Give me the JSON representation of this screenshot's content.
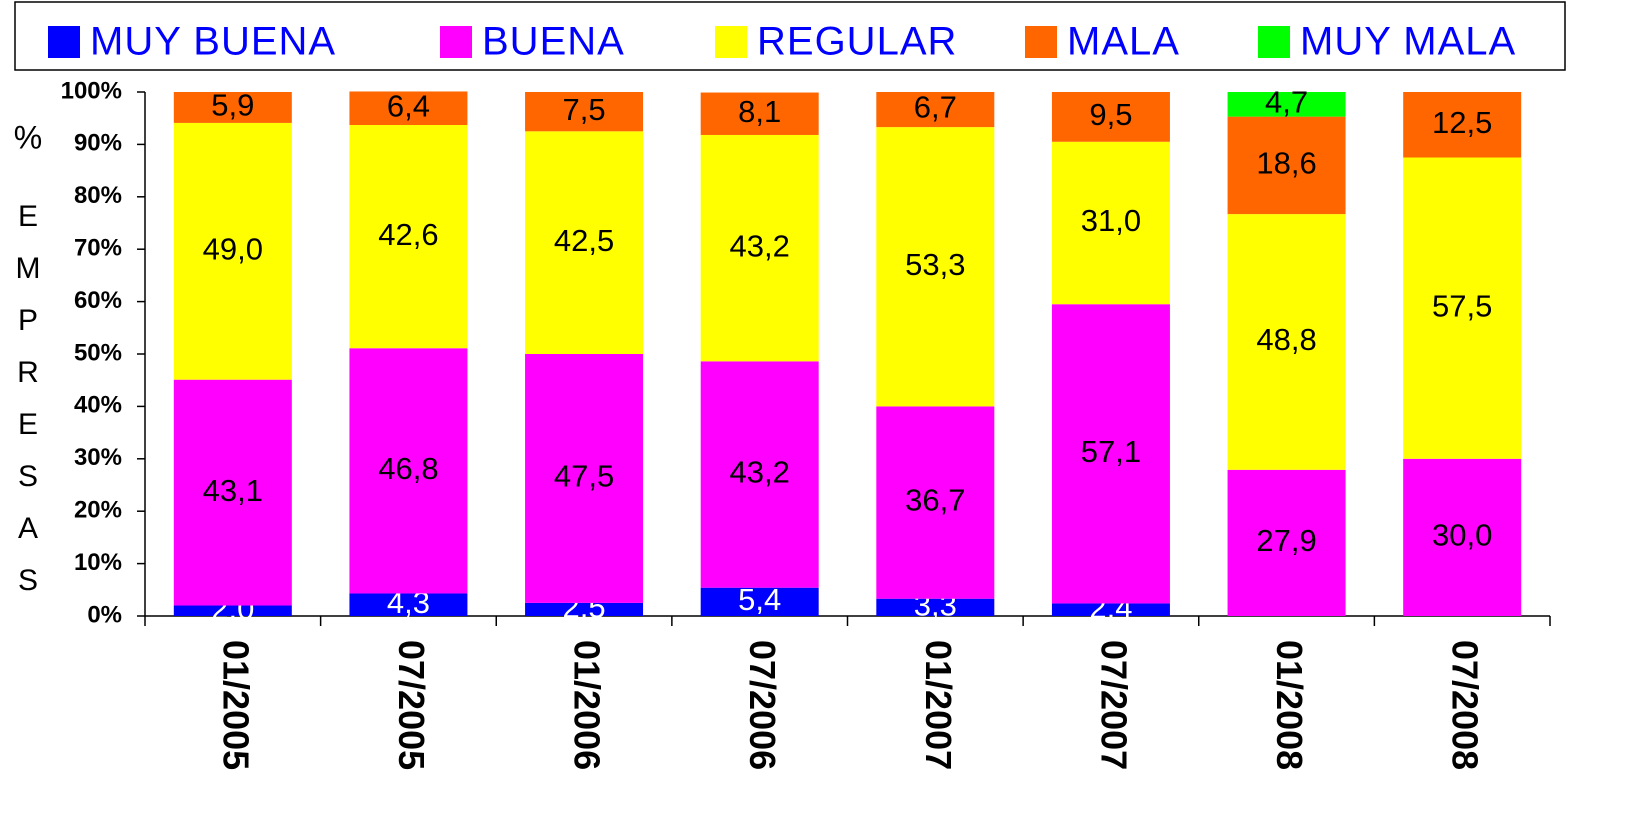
{
  "chart_data": {
    "type": "stacked_bar",
    "y_label_unit": "%",
    "y_label": "EMPRESAS",
    "categories": [
      "01/2005",
      "07/2005",
      "01/2006",
      "07/2006",
      "01/2007",
      "07/2007",
      "01/2008",
      "07/2008"
    ],
    "series": [
      {
        "name": "MUY BUENA",
        "color": "#0000ff",
        "label_color": "#ffffff",
        "values": [
          2.0,
          4.3,
          2.5,
          5.4,
          3.3,
          2.4,
          null,
          null
        ],
        "value_labels": [
          "2,0",
          "4,3",
          "2,5",
          "5,4",
          "3,3",
          "2,4",
          null,
          null
        ]
      },
      {
        "name": "BUENA",
        "color": "#ff00ff",
        "label_color": "#000000",
        "values": [
          43.1,
          46.8,
          47.5,
          43.2,
          36.7,
          57.1,
          27.9,
          30.0
        ],
        "value_labels": [
          "43,1",
          "46,8",
          "47,5",
          "43,2",
          "36,7",
          "57,1",
          "27,9",
          "30,0"
        ]
      },
      {
        "name": "REGULAR",
        "color": "#ffff00",
        "label_color": "#000000",
        "values": [
          49.0,
          42.6,
          42.5,
          43.2,
          53.3,
          31.0,
          48.8,
          57.5
        ],
        "value_labels": [
          "49,0",
          "42,6",
          "42,5",
          "43,2",
          "53,3",
          "31,0",
          "48,8",
          "57,5"
        ]
      },
      {
        "name": "MALA",
        "color": "#ff6600",
        "label_color": "#000000",
        "values": [
          5.9,
          6.4,
          7.5,
          8.1,
          6.7,
          9.5,
          18.6,
          12.5
        ],
        "value_labels": [
          "5,9",
          "6,4",
          "7,5",
          "8,1",
          "6,7",
          "9,5",
          "18,6",
          "12,5"
        ]
      },
      {
        "name": "MUY MALA",
        "color": "#00ff00",
        "label_color": "#000000",
        "values": [
          null,
          null,
          null,
          null,
          null,
          null,
          4.7,
          null
        ],
        "value_labels": [
          null,
          null,
          null,
          null,
          null,
          null,
          "4,7",
          null
        ]
      }
    ],
    "ylim": [
      0,
      100
    ],
    "yticks": [
      {
        "value": 0,
        "label": "0%"
      },
      {
        "value": 10,
        "label": "10%"
      },
      {
        "value": 20,
        "label": "20%"
      },
      {
        "value": 30,
        "label": "30%"
      },
      {
        "value": 40,
        "label": "40%"
      },
      {
        "value": 50,
        "label": "50%"
      },
      {
        "value": 60,
        "label": "60%"
      },
      {
        "value": 70,
        "label": "70%"
      },
      {
        "value": 80,
        "label": "80%"
      },
      {
        "value": 90,
        "label": "90%"
      },
      {
        "value": 100,
        "label": "100%"
      }
    ],
    "legend": "top"
  }
}
